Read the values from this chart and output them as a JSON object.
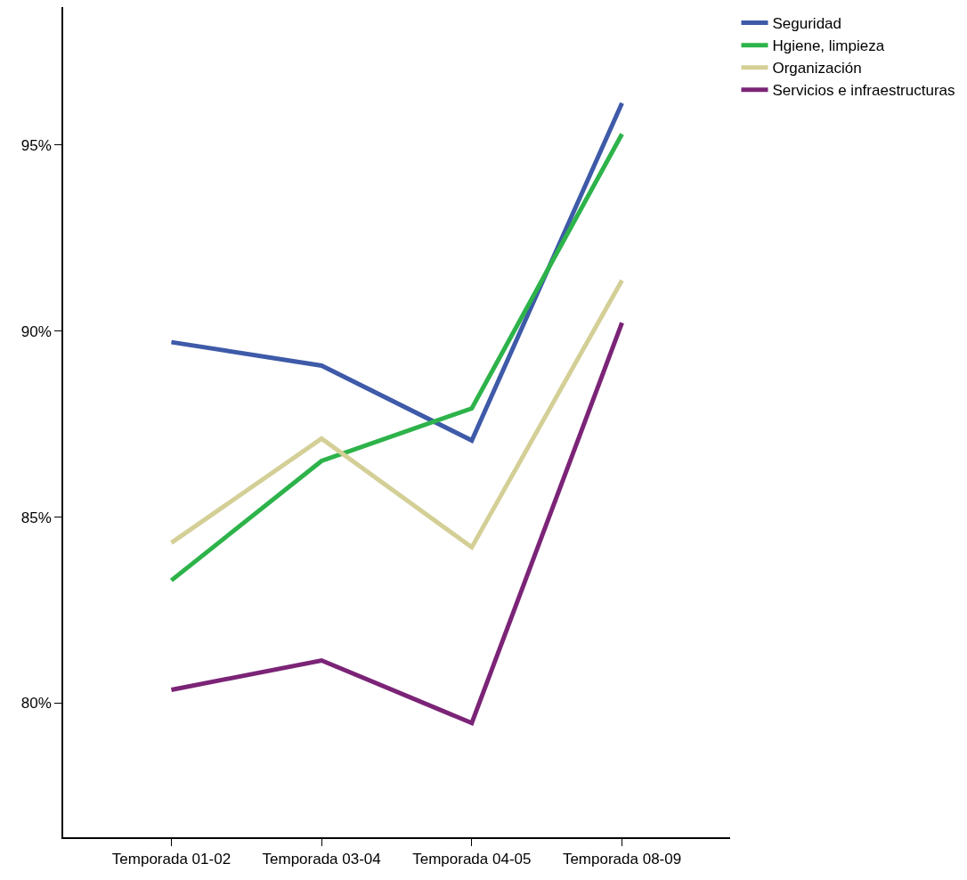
{
  "chart_data": {
    "type": "line",
    "categories": [
      "Temporada 01-02",
      "Temporada 03-04",
      "Temporada 04-05",
      "Temporada 08-09"
    ],
    "series": [
      {
        "name": "Seguridad",
        "color": "#3e5aa8",
        "values": [
          89.7,
          89.07,
          87.06,
          96.12
        ]
      },
      {
        "name": "Hgiene, limpieza",
        "color": "#2db34a",
        "values": [
          83.3,
          86.51,
          87.92,
          95.29
        ]
      },
      {
        "name": "Organización",
        "color": "#d4cf96",
        "values": [
          84.31,
          87.11,
          84.19,
          91.36
        ]
      },
      {
        "name": "Servicios e infraestructuras",
        "color": "#7b2477",
        "values": [
          80.36,
          81.15,
          79.47,
          90.22
        ]
      }
    ],
    "ylim": [
      76.4,
      98.7
    ],
    "yticks": [
      {
        "value": 80,
        "label": "80%"
      },
      {
        "value": 85,
        "label": "85%"
      },
      {
        "value": 90,
        "label": "90%"
      },
      {
        "value": 95,
        "label": "95%"
      }
    ],
    "grid": false,
    "legend": "top right",
    "marker": "none",
    "line_style": "solid"
  }
}
